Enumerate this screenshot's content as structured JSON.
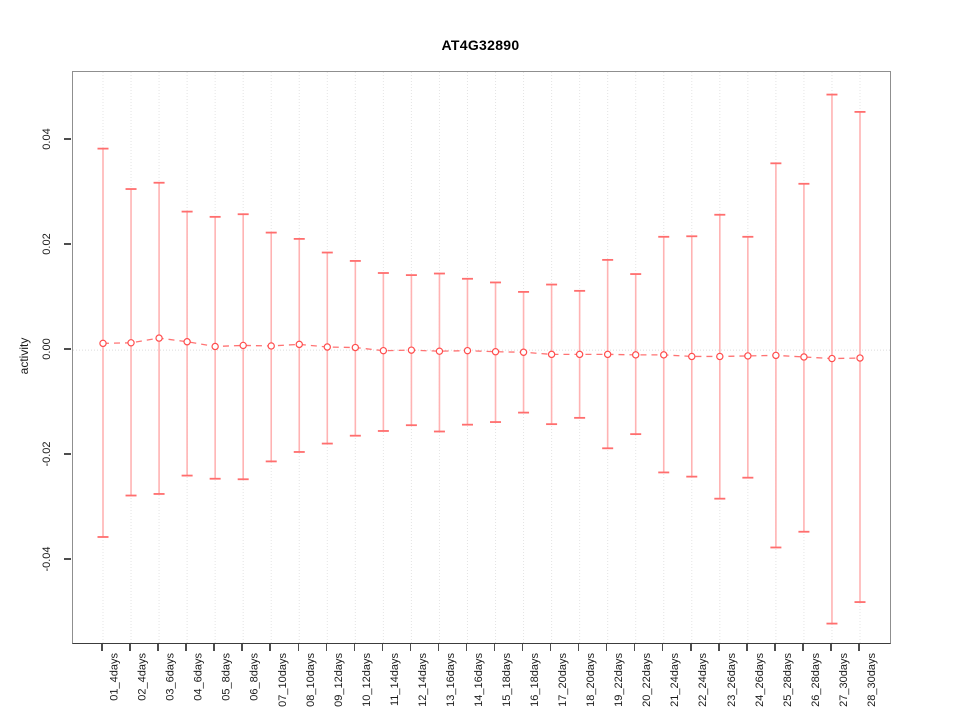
{
  "title": "AT4G32890",
  "y_axis": {
    "label": "activity"
  },
  "chart_data": {
    "type": "scatter",
    "subtype": "points-with-error-bars",
    "title": "AT4G32890",
    "xlabel": "",
    "ylabel": "activity",
    "ylim": [
      -0.0558,
      0.053
    ],
    "grid": "vertical-dotted-per-category-plus-dotted-zero-line",
    "legend": "none",
    "y_ticks": [
      {
        "value": 0.04,
        "label": "0.04"
      },
      {
        "value": 0.02,
        "label": "0.02"
      },
      {
        "value": 0.0,
        "label": "0.00"
      },
      {
        "value": -0.02,
        "label": "-0.02"
      },
      {
        "value": -0.04,
        "label": "-0.04"
      }
    ],
    "categories": [
      "01_4days",
      "02_4days",
      "03_6days",
      "04_6days",
      "05_8days",
      "06_8days",
      "07_10days",
      "08_10days",
      "09_12days",
      "10_12days",
      "11_14days",
      "12_14days",
      "13_16days",
      "14_16days",
      "15_18days",
      "16_18days",
      "17_20days",
      "18_20days",
      "19_22days",
      "20_22days",
      "21_24days",
      "22_24days",
      "23_26days",
      "24_26days",
      "25_28days",
      "26_28days",
      "27_30days",
      "28_30days"
    ],
    "series": [
      {
        "name": "mean",
        "values": [
          0.0013,
          0.0014,
          0.0023,
          0.0016,
          0.0007,
          0.0009,
          0.0008,
          0.0011,
          0.0006,
          0.0005,
          -0.0001,
          0.0,
          -0.0002,
          -0.0001,
          -0.0003,
          -0.0004,
          -0.0008,
          -0.0008,
          -0.0008,
          -0.0009,
          -0.0009,
          -0.0012,
          -0.0012,
          -0.0011,
          -0.001,
          -0.0013,
          -0.0016,
          -0.0015
        ]
      },
      {
        "name": "upper",
        "values": [
          0.0384,
          0.0307,
          0.0319,
          0.0264,
          0.0254,
          0.0259,
          0.0224,
          0.0212,
          0.0186,
          0.017,
          0.0147,
          0.0143,
          0.0146,
          0.0136,
          0.0129,
          0.0111,
          0.0125,
          0.0113,
          0.0172,
          0.0145,
          0.0216,
          0.0217,
          0.0258,
          0.0216,
          0.0356,
          0.0317,
          0.0487,
          0.0454
        ]
      },
      {
        "name": "lower",
        "values": [
          -0.0356,
          -0.0277,
          -0.0274,
          -0.0239,
          -0.0245,
          -0.0246,
          -0.0212,
          -0.0194,
          -0.0178,
          -0.0163,
          -0.0154,
          -0.0143,
          -0.0155,
          -0.0142,
          -0.0137,
          -0.0119,
          -0.0141,
          -0.0129,
          -0.0187,
          -0.016,
          -0.0233,
          -0.0241,
          -0.0283,
          -0.0243,
          -0.0376,
          -0.0346,
          -0.0521,
          -0.048
        ]
      }
    ],
    "colors": {
      "error_bar": "#ffb3b3",
      "error_cap": "#ff6e6e",
      "point": "#ff4d4d",
      "connector": "#ff7373",
      "grid_line": "#e4e4e4",
      "zero_line": "#dcdcdc",
      "frame": "#8f8f8f",
      "axis_text": "#1a1a1a"
    }
  }
}
